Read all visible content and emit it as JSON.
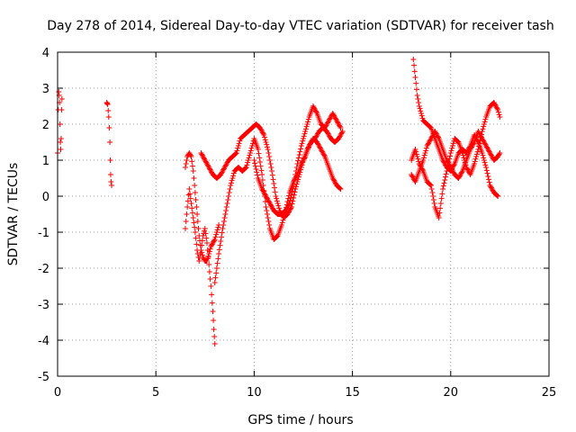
{
  "chart_data": {
    "type": "scatter",
    "title": "Day 278 of 2014, Sidereal Day-to-day VTEC variation (SDTVAR) for receiver tash",
    "xlabel": "GPS time / hours",
    "ylabel": "SDTVAR / TECUs",
    "xlim": [
      0,
      25
    ],
    "ylim": [
      -5,
      4
    ],
    "xticks": [
      0,
      5,
      10,
      15,
      20,
      25
    ],
    "yticks": [
      -5,
      -4,
      -3,
      -2,
      -1,
      0,
      1,
      2,
      3,
      4
    ],
    "grid": true,
    "marker": "+",
    "series": [
      {
        "name": "SDTVAR",
        "color": "#ff0000",
        "segments": [
          [
            [
              0.0,
              1.2
            ],
            [
              0.03,
              2.4
            ],
            [
              0.06,
              2.9
            ],
            [
              0.08,
              2.8
            ],
            [
              0.1,
              2.6
            ],
            [
              0.12,
              2.0
            ],
            [
              0.14,
              1.5
            ],
            [
              0.16,
              1.3
            ],
            [
              0.18,
              1.6
            ],
            [
              0.2,
              2.4
            ],
            [
              0.22,
              2.7
            ]
          ],
          [
            [
              2.5,
              2.6
            ],
            [
              2.55,
              2.55
            ],
            [
              2.6,
              2.2
            ],
            [
              2.63,
              1.9
            ],
            [
              2.66,
              1.5
            ],
            [
              2.68,
              1.0
            ],
            [
              2.7,
              0.6
            ],
            [
              2.72,
              0.4
            ],
            [
              2.75,
              0.3
            ]
          ],
          [
            [
              6.5,
              -0.9
            ],
            [
              6.6,
              -0.3
            ],
            [
              6.7,
              0.2
            ],
            [
              6.8,
              -0.2
            ],
            [
              6.9,
              -0.6
            ],
            [
              7.0,
              -1.0
            ],
            [
              7.1,
              -1.5
            ],
            [
              7.2,
              -1.8
            ],
            [
              7.3,
              -1.5
            ],
            [
              7.4,
              -1.1
            ],
            [
              7.5,
              -0.9
            ],
            [
              7.6,
              -1.3
            ],
            [
              7.7,
              -1.9
            ],
            [
              7.8,
              -2.5
            ],
            [
              7.9,
              -3.2
            ],
            [
              7.95,
              -3.7
            ],
            [
              8.0,
              -4.1
            ]
          ],
          [
            [
              6.5,
              0.8
            ],
            [
              6.6,
              1.1
            ],
            [
              6.7,
              1.2
            ],
            [
              6.8,
              1.1
            ],
            [
              6.9,
              0.7
            ],
            [
              7.0,
              0.1
            ],
            [
              7.1,
              -0.5
            ],
            [
              7.2,
              -1.1
            ],
            [
              7.3,
              -1.5
            ],
            [
              7.4,
              -1.7
            ],
            [
              7.5,
              -1.8
            ],
            [
              7.6,
              -1.8
            ],
            [
              7.7,
              -1.6
            ],
            [
              7.8,
              -1.4
            ],
            [
              7.9,
              -1.3
            ],
            [
              8.0,
              -1.2
            ],
            [
              8.1,
              -1.0
            ],
            [
              8.2,
              -0.8
            ]
          ],
          [
            [
              7.3,
              1.2
            ],
            [
              7.5,
              1.0
            ],
            [
              7.7,
              0.8
            ],
            [
              7.9,
              0.6
            ],
            [
              8.1,
              0.5
            ],
            [
              8.3,
              0.6
            ],
            [
              8.5,
              0.8
            ],
            [
              8.7,
              1.0
            ],
            [
              8.9,
              1.1
            ],
            [
              9.1,
              1.2
            ],
            [
              9.3,
              1.6
            ],
            [
              9.5,
              1.7
            ],
            [
              9.7,
              1.8
            ],
            [
              9.9,
              1.9
            ],
            [
              10.1,
              2.0
            ],
            [
              10.3,
              1.9
            ],
            [
              10.5,
              1.7
            ],
            [
              10.7,
              1.3
            ],
            [
              10.9,
              0.7
            ],
            [
              11.1,
              0.0
            ],
            [
              11.3,
              -0.4
            ],
            [
              11.5,
              -0.6
            ],
            [
              11.7,
              -0.5
            ],
            [
              11.9,
              -0.3
            ],
            [
              12.1,
              0.2
            ],
            [
              12.3,
              0.6
            ],
            [
              12.5,
              1.0
            ],
            [
              12.7,
              1.3
            ],
            [
              12.9,
              1.5
            ],
            [
              13.1,
              1.6
            ],
            [
              13.3,
              1.8
            ],
            [
              13.5,
              1.9
            ],
            [
              13.7,
              1.8
            ],
            [
              13.9,
              1.6
            ],
            [
              14.1,
              1.5
            ],
            [
              14.3,
              1.6
            ],
            [
              14.5,
              1.8
            ]
          ],
          [
            [
              8.0,
              -2.4
            ],
            [
              8.2,
              -1.6
            ],
            [
              8.4,
              -0.9
            ],
            [
              8.6,
              -0.3
            ],
            [
              8.8,
              0.3
            ],
            [
              9.0,
              0.7
            ],
            [
              9.2,
              0.8
            ],
            [
              9.4,
              0.7
            ],
            [
              9.6,
              0.8
            ],
            [
              9.8,
              1.2
            ],
            [
              10.0,
              1.6
            ],
            [
              10.2,
              1.3
            ],
            [
              10.4,
              0.6
            ],
            [
              10.6,
              -0.3
            ],
            [
              10.8,
              -0.9
            ],
            [
              11.0,
              -1.2
            ],
            [
              11.2,
              -1.1
            ],
            [
              11.4,
              -0.8
            ],
            [
              11.6,
              -0.4
            ],
            [
              11.8,
              0.1
            ],
            [
              12.0,
              0.4
            ],
            [
              12.2,
              0.6
            ],
            [
              12.4,
              0.9
            ],
            [
              12.6,
              1.1
            ],
            [
              12.8,
              1.4
            ],
            [
              13.0,
              1.6
            ],
            [
              13.2,
              1.5
            ],
            [
              13.4,
              1.3
            ],
            [
              13.6,
              1.1
            ],
            [
              13.8,
              0.8
            ],
            [
              14.0,
              0.5
            ],
            [
              14.2,
              0.3
            ],
            [
              14.4,
              0.2
            ]
          ],
          [
            [
              10.0,
              1.0
            ],
            [
              10.2,
              0.5
            ],
            [
              10.4,
              0.2
            ],
            [
              10.6,
              0.0
            ],
            [
              10.8,
              -0.2
            ],
            [
              11.0,
              -0.4
            ],
            [
              11.2,
              -0.5
            ],
            [
              11.4,
              -0.5
            ],
            [
              11.6,
              -0.4
            ],
            [
              11.8,
              -0.2
            ],
            [
              12.0,
              0.3
            ],
            [
              12.2,
              0.9
            ],
            [
              12.4,
              1.4
            ],
            [
              12.6,
              1.8
            ],
            [
              12.8,
              2.2
            ],
            [
              13.0,
              2.5
            ],
            [
              13.2,
              2.3
            ],
            [
              13.4,
              2.0
            ],
            [
              13.6,
              1.9
            ],
            [
              13.8,
              2.1
            ],
            [
              14.0,
              2.3
            ],
            [
              14.2,
              2.1
            ],
            [
              14.4,
              1.9
            ]
          ],
          [
            [
              18.1,
              3.8
            ],
            [
              18.2,
              3.3
            ],
            [
              18.3,
              2.8
            ],
            [
              18.4,
              2.5
            ],
            [
              18.5,
              2.3
            ],
            [
              18.6,
              2.1
            ],
            [
              18.8,
              2.0
            ],
            [
              19.0,
              1.9
            ],
            [
              19.2,
              1.6
            ],
            [
              19.4,
              1.3
            ],
            [
              19.6,
              1.0
            ],
            [
              19.8,
              0.8
            ],
            [
              20.0,
              0.7
            ],
            [
              20.2,
              0.9
            ],
            [
              20.4,
              1.2
            ],
            [
              20.6,
              1.3
            ],
            [
              20.8,
              1.2
            ],
            [
              21.0,
              1.4
            ],
            [
              21.2,
              1.7
            ],
            [
              21.4,
              1.5
            ],
            [
              21.6,
              1.2
            ],
            [
              21.8,
              0.8
            ],
            [
              22.0,
              0.3
            ],
            [
              22.2,
              0.1
            ],
            [
              22.4,
              0.0
            ]
          ],
          [
            [
              18.0,
              1.0
            ],
            [
              18.2,
              1.3
            ],
            [
              18.4,
              0.9
            ],
            [
              18.6,
              0.7
            ],
            [
              18.8,
              0.4
            ],
            [
              19.0,
              0.3
            ],
            [
              19.2,
              -0.3
            ],
            [
              19.4,
              -0.6
            ],
            [
              19.6,
              0.2
            ],
            [
              19.8,
              0.7
            ],
            [
              20.0,
              1.2
            ],
            [
              20.2,
              1.6
            ],
            [
              20.4,
              1.5
            ],
            [
              20.6,
              1.2
            ],
            [
              20.8,
              0.8
            ],
            [
              21.0,
              0.6
            ],
            [
              21.2,
              0.9
            ],
            [
              21.4,
              1.3
            ],
            [
              21.6,
              1.8
            ],
            [
              21.8,
              2.2
            ],
            [
              22.0,
              2.5
            ],
            [
              22.2,
              2.6
            ],
            [
              22.4,
              2.4
            ],
            [
              22.5,
              2.2
            ]
          ],
          [
            [
              18.0,
              0.6
            ],
            [
              18.2,
              0.4
            ],
            [
              18.4,
              0.7
            ],
            [
              18.6,
              1.0
            ],
            [
              18.8,
              1.4
            ],
            [
              19.0,
              1.6
            ],
            [
              19.2,
              1.8
            ],
            [
              19.4,
              1.6
            ],
            [
              19.6,
              1.3
            ],
            [
              19.8,
              1.0
            ],
            [
              20.0,
              0.8
            ],
            [
              20.2,
              0.6
            ],
            [
              20.4,
              0.5
            ],
            [
              20.6,
              0.7
            ],
            [
              20.8,
              1.0
            ],
            [
              21.0,
              1.3
            ],
            [
              21.2,
              1.5
            ],
            [
              21.4,
              1.8
            ],
            [
              21.6,
              1.6
            ],
            [
              21.8,
              1.4
            ],
            [
              22.0,
              1.2
            ],
            [
              22.2,
              1.0
            ],
            [
              22.4,
              1.1
            ],
            [
              22.5,
              1.2
            ]
          ]
        ]
      }
    ]
  }
}
